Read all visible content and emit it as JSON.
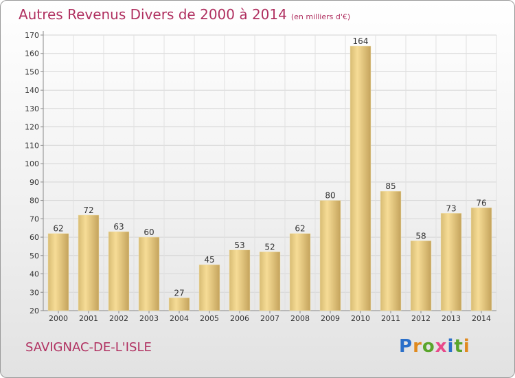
{
  "header": {
    "title": "Autres Revenus Divers de 2000 à 2014",
    "unit": "(en milliers d'€)"
  },
  "footer": {
    "commune": "SAVIGNAC-DE-L'ISLE",
    "logo_text": "Proxiti"
  },
  "colors": {
    "title": "#b03060",
    "bar_light": "#f6dc96",
    "bar_dark": "#c8aa62"
  },
  "chart_data": {
    "type": "bar",
    "title": "Autres Revenus Divers de 2000 à 2014",
    "subtitle": "(en milliers d'€)",
    "categories": [
      "2000",
      "2001",
      "2002",
      "2003",
      "2004",
      "2005",
      "2006",
      "2007",
      "2008",
      "2009",
      "2010",
      "2011",
      "2012",
      "2013",
      "2014"
    ],
    "values": [
      62,
      72,
      63,
      60,
      27,
      45,
      53,
      52,
      62,
      80,
      164,
      85,
      58,
      73,
      76
    ],
    "ylim": [
      20,
      170
    ],
    "yticks": [
      20,
      30,
      40,
      50,
      60,
      70,
      80,
      90,
      100,
      110,
      120,
      130,
      140,
      150,
      160,
      170
    ],
    "grid": true,
    "data_labels": true
  }
}
